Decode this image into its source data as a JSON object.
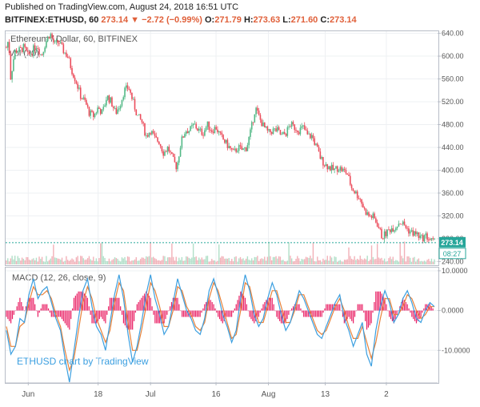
{
  "header": {
    "published": "Published on TradingView.com, August 24, 2018 16:51 UTC",
    "symbol": "BITFINEX:ETHUSD, 60",
    "last": "273.14",
    "change": "▼ −2.72 (−0.99%)",
    "o_label": "O:",
    "o": "271.79",
    "h_label": "H:",
    "h": "273.63",
    "l_label": "L:",
    "l": "271.60",
    "c_label": "C:",
    "c": "273.14"
  },
  "colors": {
    "up": "#53b987",
    "down": "#eb4d5c",
    "macd": "#3b9fe0",
    "signal": "#e8823a",
    "hist_pos": "#e91e63",
    "hist_neg": "#e91e63",
    "current": "#26a69a",
    "grid": "#eef0f3",
    "axis": "#b8bdc7"
  },
  "chart_data": [
    {
      "type": "candlestick",
      "title": "Ethereum / Dollar, 60, BITFINEX",
      "indicator": "Vol (20)",
      "y_ticks": [
        240,
        280,
        320,
        360,
        400,
        440,
        480,
        520,
        560,
        600,
        640
      ],
      "ylim": [
        235,
        645
      ],
      "x_ticks": [
        "Jun",
        "18",
        "Jul",
        "16",
        "Aug",
        "13",
        "2"
      ],
      "current_price": "273.14",
      "countdown": "08:27",
      "series": {
        "name": "ETHUSD",
        "close_anchors": [
          [
            0,
            615
          ],
          [
            0.5,
            630
          ],
          [
            1,
            560
          ],
          [
            1.5,
            590
          ],
          [
            2,
            610
          ],
          [
            3,
            610
          ],
          [
            4,
            615
          ],
          [
            5,
            600
          ],
          [
            6,
            610
          ],
          [
            7,
            620
          ],
          [
            8,
            600
          ],
          [
            9,
            625
          ],
          [
            10,
            640
          ],
          [
            11,
            620
          ],
          [
            12,
            625
          ],
          [
            13,
            610
          ],
          [
            14,
            600
          ],
          [
            15,
            575
          ],
          [
            16,
            555
          ],
          [
            17,
            530
          ],
          [
            18,
            520
          ],
          [
            19,
            500
          ],
          [
            20,
            495
          ],
          [
            21,
            510
          ],
          [
            22,
            500
          ],
          [
            23,
            530
          ],
          [
            24,
            520
          ],
          [
            25,
            500
          ],
          [
            26,
            515
          ],
          [
            27,
            540
          ],
          [
            28,
            545
          ],
          [
            29,
            520
          ],
          [
            30,
            495
          ],
          [
            31,
            485
          ],
          [
            32,
            460
          ],
          [
            33,
            470
          ],
          [
            34,
            455
          ],
          [
            35,
            450
          ],
          [
            36,
            430
          ],
          [
            37,
            440
          ],
          [
            38,
            420
          ],
          [
            39,
            405
          ],
          [
            40,
            450
          ],
          [
            41,
            470
          ],
          [
            42,
            470
          ],
          [
            43,
            480
          ],
          [
            44,
            470
          ],
          [
            45,
            465
          ],
          [
            46,
            480
          ],
          [
            47,
            470
          ],
          [
            48,
            475
          ],
          [
            49,
            460
          ],
          [
            50,
            450
          ],
          [
            51,
            440
          ],
          [
            52,
            430
          ],
          [
            53,
            440
          ],
          [
            54,
            435
          ],
          [
            55,
            440
          ],
          [
            56,
            470
          ],
          [
            57,
            510
          ],
          [
            58,
            490
          ],
          [
            59,
            475
          ],
          [
            60,
            465
          ],
          [
            61,
            470
          ],
          [
            62,
            470
          ],
          [
            63,
            460
          ],
          [
            64,
            465
          ],
          [
            65,
            480
          ],
          [
            66,
            475
          ],
          [
            67,
            470
          ],
          [
            68,
            475
          ],
          [
            69,
            460
          ],
          [
            70,
            460
          ],
          [
            71,
            440
          ],
          [
            72,
            420
          ],
          [
            73,
            410
          ],
          [
            74,
            405
          ],
          [
            75,
            400
          ],
          [
            76,
            405
          ],
          [
            77,
            400
          ],
          [
            78,
            395
          ],
          [
            79,
            370
          ],
          [
            80,
            360
          ],
          [
            81,
            350
          ],
          [
            82,
            330
          ],
          [
            83,
            320
          ],
          [
            84,
            318
          ],
          [
            85,
            305
          ],
          [
            86,
            283
          ],
          [
            87,
            290
          ],
          [
            88,
            298
          ],
          [
            89,
            300
          ],
          [
            90,
            310
          ],
          [
            91,
            305
          ],
          [
            92,
            295
          ],
          [
            93,
            290
          ],
          [
            94,
            288
          ],
          [
            95,
            280
          ],
          [
            96,
            285
          ],
          [
            97,
            278
          ],
          [
            98,
            273.14
          ]
        ]
      }
    },
    {
      "type": "line",
      "title": "MACD (12, 26, close, 9)",
      "y_ticks": [
        10,
        0,
        -10
      ],
      "y_tick_labels": [
        "10.0000",
        "0.0000",
        "-10.0000"
      ],
      "ylim": [
        -18,
        11
      ],
      "series": [
        {
          "name": "MACD",
          "values": [
            -5,
            -11,
            -9,
            -2,
            -3,
            4,
            8,
            3,
            5,
            6,
            2,
            -2,
            -5,
            -12,
            -18,
            -10,
            -2,
            5,
            8,
            1,
            -4,
            -6,
            -10,
            -3,
            4,
            9,
            3,
            -6,
            -13,
            -9,
            -3,
            4,
            9,
            3,
            -1,
            -6,
            -4,
            2,
            8,
            4,
            0,
            -2,
            -5,
            -6,
            -2,
            5,
            8,
            4,
            -1,
            -4,
            -8,
            -5,
            3,
            9,
            5,
            -1,
            -4,
            -2,
            3,
            7,
            4,
            -1,
            -5,
            -3,
            1,
            5,
            3,
            0,
            -3,
            -6,
            -7,
            -4,
            -1,
            2,
            4,
            -2,
            -5,
            -9,
            -6,
            -3,
            -11,
            -14,
            -5,
            1,
            5,
            2,
            -3,
            -1,
            3,
            5,
            2,
            -2,
            -3,
            0,
            2,
            1
          ]
        },
        {
          "name": "Signal",
          "values": [
            -4,
            -9,
            -9,
            -4,
            -3,
            2,
            6,
            4,
            4,
            5,
            3,
            -1,
            -4,
            -10,
            -15,
            -12,
            -5,
            2,
            6,
            3,
            -2,
            -5,
            -8,
            -5,
            2,
            7,
            5,
            -3,
            -10,
            -10,
            -5,
            1,
            7,
            5,
            1,
            -4,
            -4,
            0,
            6,
            5,
            1,
            -1,
            -4,
            -5,
            -3,
            3,
            7,
            5,
            1,
            -3,
            -7,
            -6,
            0,
            7,
            6,
            1,
            -3,
            -3,
            1,
            5,
            5,
            1,
            -3,
            -3,
            0,
            4,
            4,
            1,
            -2,
            -5,
            -6,
            -5,
            -2,
            1,
            3,
            0,
            -4,
            -7,
            -7,
            -4,
            -8,
            -12,
            -8,
            -2,
            3,
            3,
            -1,
            -1,
            1,
            4,
            3,
            0,
            -2,
            -1,
            1,
            1
          ]
        }
      ]
    }
  ],
  "watermark": "ETHUSD chart by TradingView"
}
